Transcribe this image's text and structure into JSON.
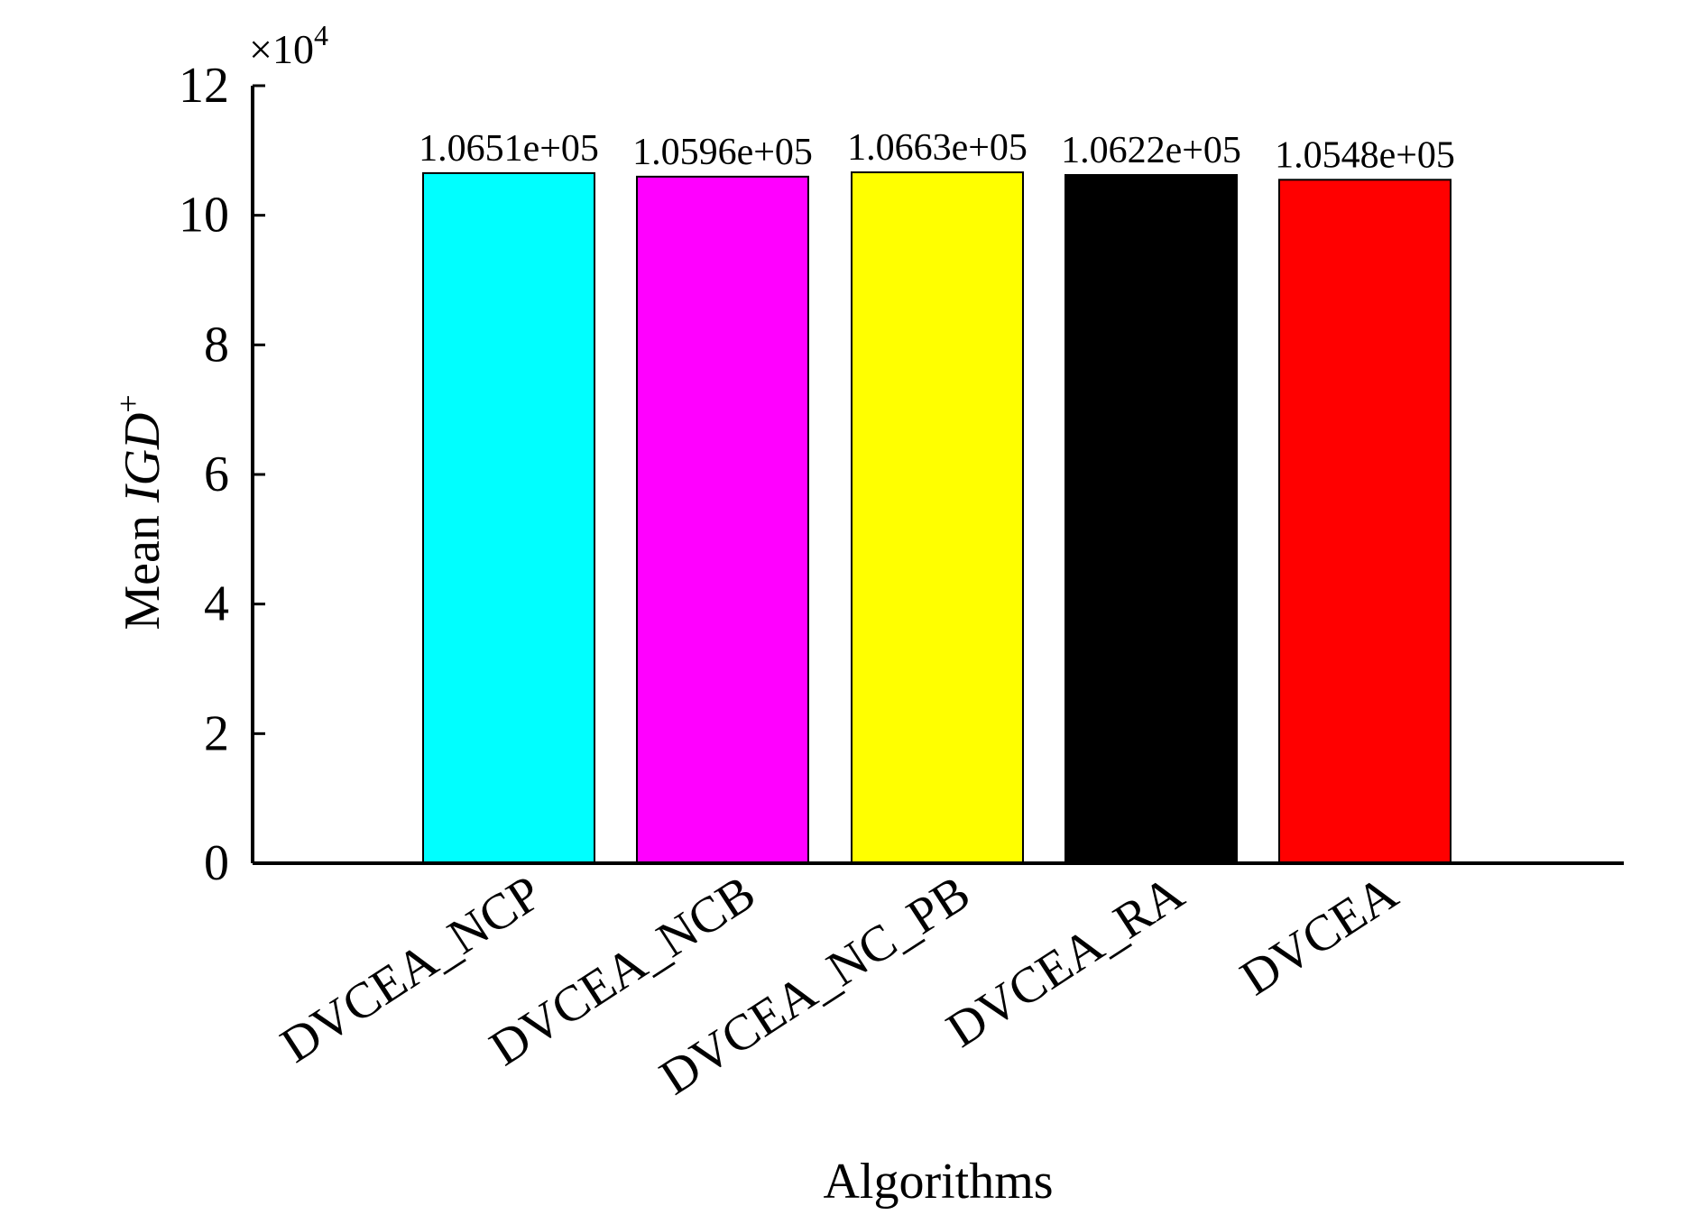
{
  "chart_data": {
    "type": "bar",
    "categories": [
      "DVCEA_NCP",
      "DVCEA_NCB",
      "DVCEA_NC_PB",
      "DVCEA_RA",
      "DVCEA"
    ],
    "values": [
      106510,
      105960,
      106630,
      106220,
      105480
    ],
    "value_labels": [
      "1.0651e+05",
      "1.0596e+05",
      "1.0663e+05",
      "1.0622e+05",
      "1.0548e+05"
    ],
    "colors": [
      "#00ffff",
      "#ff00ff",
      "#ffff00",
      "#000000",
      "#ff0000"
    ],
    "xlabel": "Algorithms",
    "ylabel": {
      "prefix": "Mean ",
      "italic": "IGD",
      "superscript": "+"
    },
    "ylim": [
      0,
      120000
    ],
    "yticks": [
      0,
      2,
      4,
      6,
      8,
      10,
      12
    ],
    "y_multiplier": {
      "base": "×10",
      "exponent": "4"
    },
    "grid": false,
    "legend": "none"
  }
}
